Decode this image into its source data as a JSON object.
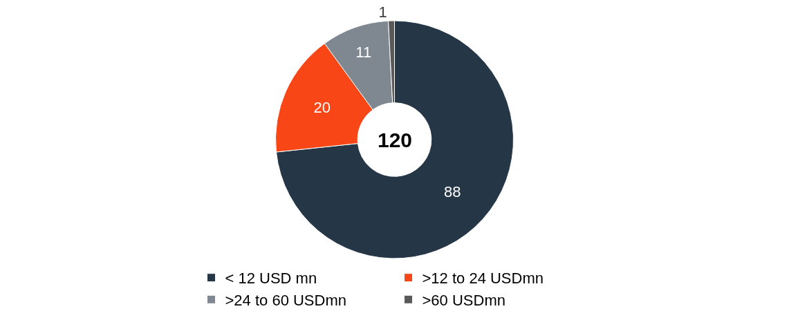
{
  "chart_data": {
    "type": "donut",
    "categories": [
      "< 12 USD mn",
      ">12 to 24 USDmn",
      ">24 to 60 USDmn",
      ">60 USDmn"
    ],
    "values": [
      88,
      20,
      11,
      1
    ],
    "colors": [
      "#253746",
      "#f84616",
      "#7f8891",
      "#595959"
    ],
    "data_labels": true,
    "annotations": [
      "120"
    ],
    "legend": "bottom"
  }
}
